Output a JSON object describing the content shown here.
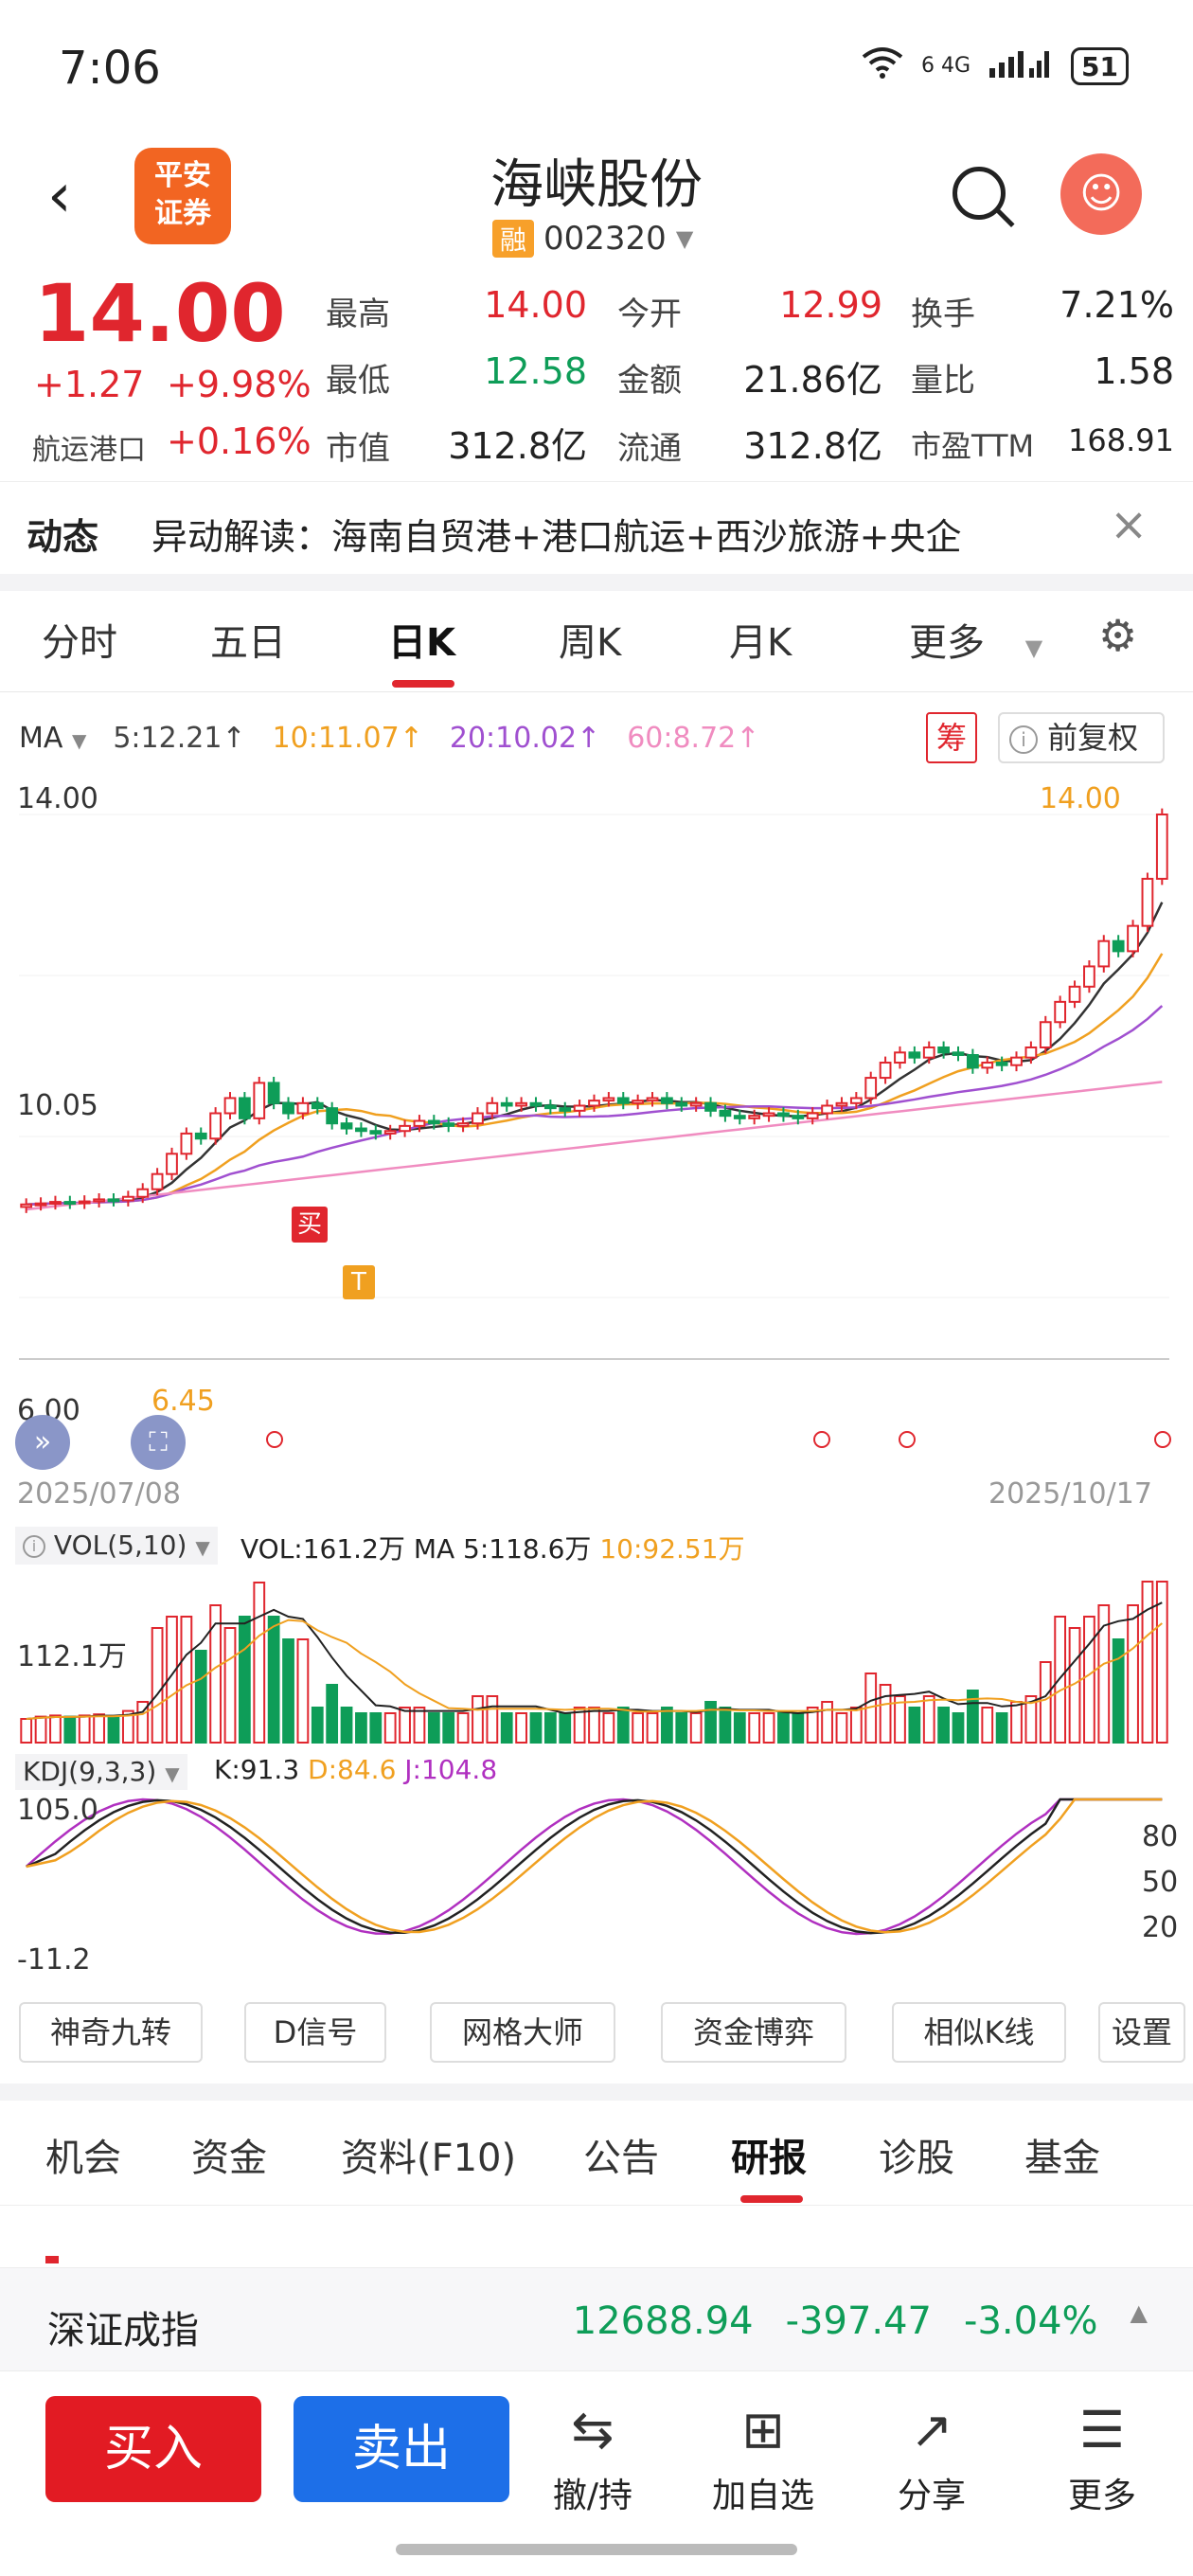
{
  "status": {
    "time": "7:06",
    "signal_labels": "6  4G",
    "battery": "51"
  },
  "header": {
    "broker_logo": "平安\n证券",
    "stock_name": "海峡股份",
    "margin_badge": "融",
    "stock_code": "002320",
    "avatar_glyph": "☺"
  },
  "quote": {
    "price": "14.00",
    "change": "+1.27",
    "change_pct": "+9.98%",
    "sector": "航运港口",
    "sector_pct": "+0.16%",
    "stats": [
      {
        "label": "最高",
        "value": "14.00",
        "color": "red"
      },
      {
        "label": "今开",
        "value": "12.99",
        "color": "red"
      },
      {
        "label": "换手",
        "value": "7.21%",
        "color": "dark"
      },
      {
        "label": "最低",
        "value": "12.58",
        "color": "green"
      },
      {
        "label": "金额",
        "value": "21.86亿",
        "color": "dark"
      },
      {
        "label": "量比",
        "value": "1.58",
        "color": "dark"
      },
      {
        "label": "市值",
        "value": "312.8亿",
        "color": "dark"
      },
      {
        "label": "流通",
        "value": "312.8亿",
        "color": "dark"
      },
      {
        "label": "市盈TTM",
        "value": "168.91",
        "color": "dark"
      }
    ]
  },
  "news": {
    "label": "动态",
    "text": "异动解读：海南自贸港+港口航运+西沙旅游+央企",
    "close": "×"
  },
  "period_tabs": [
    "分时",
    "五日",
    "日K",
    "周K",
    "月K",
    "更多"
  ],
  "ma_legend": {
    "name": "MA",
    "items": [
      {
        "text": "5:12.21↑",
        "color": "#444444"
      },
      {
        "text": "10:11.07↑",
        "color": "#f0a020"
      },
      {
        "text": "20:10.02↑",
        "color": "#a050d0"
      },
      {
        "text": "60:8.72↑",
        "color": "#f08cc0"
      }
    ],
    "chip_button": "筹",
    "adjust_button": "前复权"
  },
  "chart_labels": {
    "y_top": "14.00",
    "y_mid": "10.05",
    "y_low": "6.45",
    "y_bottom_partial": "6.00",
    "high_marker": "14.00",
    "date_start": "2025/07/08",
    "date_end": "2025/10/17",
    "buy_tag": "买",
    "t_tag": "T",
    "vol_title": "VOL(5,10)",
    "vol_values": "VOL:161.2万",
    "vol_ma5": "MA 5:118.6万",
    "vol_ma10": "10:92.51万",
    "vol_axis": "112.1万",
    "kdj_title": "KDJ(9,3,3)",
    "kdj_k": "K:91.3",
    "kdj_d": "D:84.6",
    "kdj_j": "J:104.8",
    "kdj_top": "105.0",
    "kdj_bottom": "-11.2",
    "kdj_80": "80",
    "kdj_50": "50",
    "kdj_20": "20"
  },
  "chart_data": {
    "type": "candlestick",
    "x_range": [
      "2025/07/08",
      "2025/10/17"
    ],
    "y_range": [
      6.0,
      14.0
    ],
    "last_close": 14.0,
    "ma": {
      "ma5": 12.21,
      "ma10": 11.07,
      "ma20": 10.02,
      "ma60": 8.72
    },
    "volume": {
      "vol": "161.2万",
      "ma5": "118.6万",
      "ma10": "92.51万"
    },
    "kdj": {
      "k": 91.3,
      "d": 84.6,
      "j": 104.8,
      "range": [
        -11.2,
        105.0
      ]
    },
    "colors": {
      "up": "#e0262e",
      "down": "#0e9d58",
      "ma5": "#333333",
      "ma10": "#f0a020",
      "ma20": "#a050d0",
      "ma60": "#f08cc0"
    }
  },
  "tools": [
    "神奇九转",
    "D信号",
    "网格大师",
    "资金博弈",
    "相似K线",
    "设置"
  ],
  "bottom_tabs": [
    "机会",
    "资金",
    "资料(F10)",
    "公告",
    "研报",
    "诊股",
    "基金"
  ],
  "index_ticker": {
    "name": "深证成指",
    "value": "12688.94",
    "change": "-397.47",
    "pct": "-3.04%"
  },
  "actions": {
    "buy": "买入",
    "sell": "卖出",
    "items": [
      {
        "label": "撤/持",
        "icon": "⇆"
      },
      {
        "label": "加自选",
        "icon": "⊞"
      },
      {
        "label": "分享",
        "icon": "↗"
      },
      {
        "label": "更多",
        "icon": "☰"
      }
    ]
  }
}
